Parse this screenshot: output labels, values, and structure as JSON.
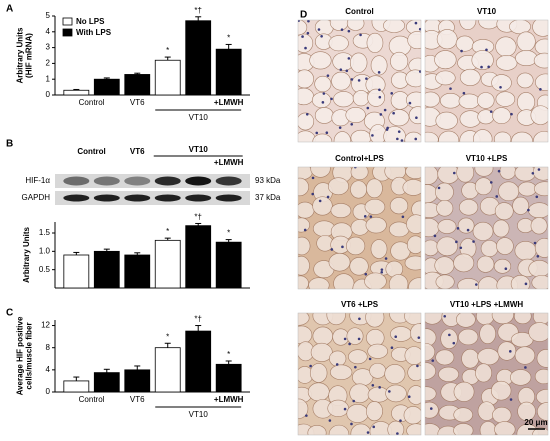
{
  "panel_labels": [
    "A",
    "B",
    "C",
    "D"
  ],
  "chart_data": [
    {
      "type": "bar",
      "y_label": [
        "Arbitrary Units",
        "(HIF mRNA)"
      ],
      "legend": "top-left",
      "groups": [
        "Control",
        "VT6",
        "VT10",
        "+LMWH"
      ],
      "series": [
        {
          "name": "No LPS",
          "color": "#ffffff",
          "values": [
            0.3,
            null,
            null,
            2.2,
            null,
            null
          ],
          "errors": [
            0.05,
            null,
            null,
            0.2,
            null,
            null
          ]
        },
        {
          "name": "With LPS",
          "color": "#000000",
          "values": [
            null,
            1.0,
            1.3,
            null,
            4.7,
            2.9
          ],
          "errors": [
            null,
            0.08,
            0.08,
            null,
            0.25,
            0.3
          ]
        }
      ],
      "annotations": [
        null,
        null,
        null,
        "*",
        "*†",
        "*"
      ],
      "ylim": [
        0,
        5
      ],
      "yticks": [
        0,
        1,
        2,
        3,
        4,
        5
      ]
    },
    {
      "type": "bar",
      "y_label": [
        "Arbitrary Units"
      ],
      "series": [
        {
          "color": "#ffffff",
          "values": [
            0.9,
            null,
            null,
            1.3,
            null,
            null
          ],
          "errors": [
            0.07,
            null,
            null,
            0.06,
            null,
            null
          ]
        },
        {
          "color": "#000000",
          "values": [
            null,
            1.0,
            0.9,
            null,
            1.7,
            1.25
          ],
          "errors": [
            null,
            0.06,
            0.06,
            null,
            0.06,
            0.07
          ]
        }
      ],
      "annotations": [
        null,
        null,
        null,
        "*",
        "*†",
        "*"
      ],
      "ylim": [
        0,
        1.8
      ],
      "yticks": [
        0.5,
        {
          "value": 1,
          "label": "1.0"
        },
        1.5
      ]
    },
    {
      "type": "bar",
      "y_label": [
        "Average HIF positive",
        "cells/muscle fiber"
      ],
      "groups": [
        "Control",
        "VT6",
        "VT10",
        "+LMWH"
      ],
      "series": [
        {
          "color": "#ffffff",
          "values": [
            2,
            null,
            null,
            8,
            null,
            null
          ],
          "errors": [
            0.7,
            null,
            null,
            0.8,
            null,
            null
          ]
        },
        {
          "color": "#000000",
          "values": [
            null,
            3.5,
            4,
            null,
            11,
            5
          ],
          "errors": [
            null,
            0.6,
            0.7,
            null,
            1.0,
            0.6
          ]
        }
      ],
      "annotations": [
        null,
        null,
        null,
        "*",
        "*†",
        "*"
      ],
      "ylim": [
        0,
        13
      ],
      "yticks": [
        0,
        4,
        8,
        12
      ]
    }
  ],
  "blot": {
    "lanes": [
      "Control",
      "VT6",
      "VT10",
      "+LMWH"
    ],
    "rows": [
      {
        "protein": "HIF-1α",
        "size": "93 kDa"
      },
      {
        "protein": "GAPDH",
        "size": "37 kDa"
      }
    ]
  },
  "micrographs": {
    "images": [
      "Control",
      "VT10",
      "Control+LPS",
      "VT10 +LPS",
      "VT6 +LPS",
      "VT10 +LPS +LMWH"
    ],
    "scale_bar": "20 μm"
  }
}
